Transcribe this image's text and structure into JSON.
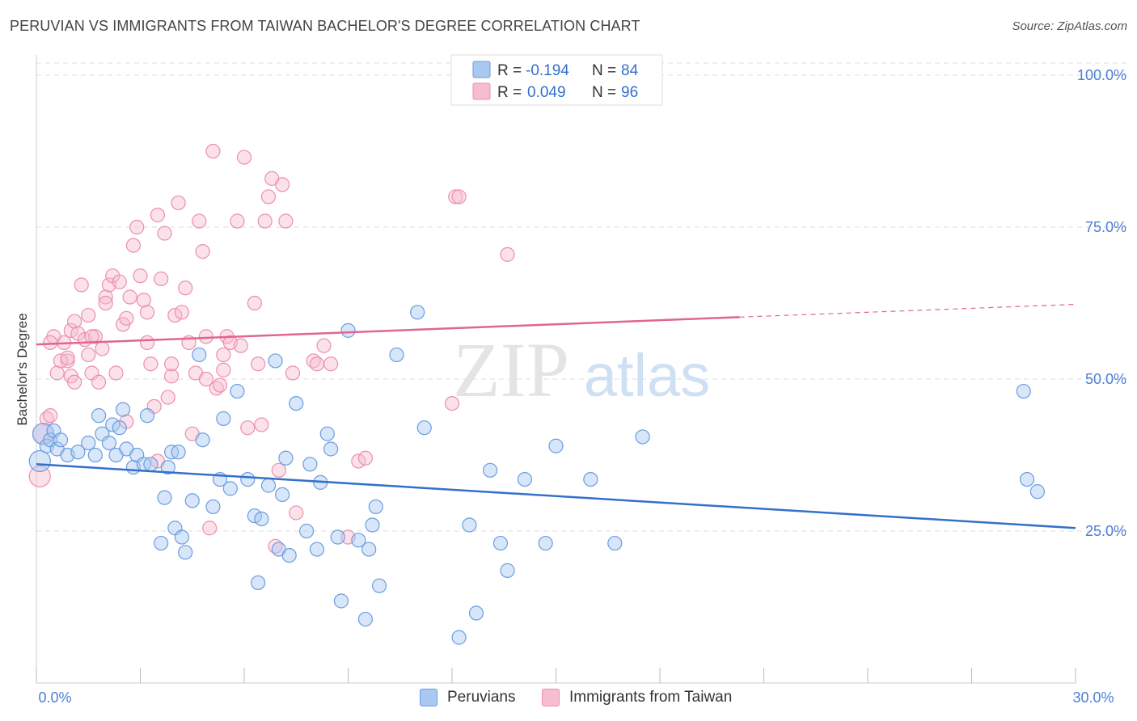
{
  "title": "PERUVIAN VS IMMIGRANTS FROM TAIWAN BACHELOR'S DEGREE CORRELATION CHART",
  "source": "Source: ZipAtlas.com",
  "colors": {
    "blue_fill": "#a9c8f2",
    "blue_stroke": "#6b9de0",
    "blue_line": "#3370cc",
    "pink_fill": "#f6bdd0",
    "pink_stroke": "#ec8fae",
    "pink_line": "#e0668f",
    "axis_text": "#4a7fd4",
    "grid": "#dddddd"
  },
  "stats": [
    {
      "r_label": "R =",
      "r_value": "-0.194",
      "n_label": "N =",
      "n_value": "84"
    },
    {
      "r_label": "R =",
      "r_value": "0.049",
      "n_label": "N =",
      "n_value": "96"
    }
  ],
  "legend": {
    "peruvians": "Peruvians",
    "taiwan": "Immigrants from Taiwan"
  },
  "watermark": {
    "zip": "ZIP",
    "atlas": "atlas"
  },
  "chart_data": {
    "type": "scatter",
    "title": "PERUVIAN VS IMMIGRANTS FROM TAIWAN BACHELOR'S DEGREE CORRELATION CHART",
    "xlabel": "",
    "ylabel": "Bachelor's Degree",
    "xlim": [
      0,
      30
    ],
    "ylim": [
      0,
      102
    ],
    "x_tick_labels": [
      "0.0%",
      "30.0%"
    ],
    "y_ticks": [
      25,
      50,
      75,
      100
    ],
    "y_tick_labels": [
      "25.0%",
      "50.0%",
      "75.0%",
      "100.0%"
    ],
    "grid": true,
    "legend_position": "top-center",
    "series": [
      {
        "name": "Peruvians",
        "trend": {
          "x": [
            0,
            30
          ],
          "y": [
            36.0,
            25.5
          ]
        },
        "points": [
          [
            0.1,
            36.5
          ],
          [
            0.2,
            41
          ],
          [
            0.3,
            39
          ],
          [
            0.4,
            40
          ],
          [
            0.5,
            41.5
          ],
          [
            0.6,
            38.5
          ],
          [
            0.7,
            40
          ],
          [
            0.9,
            37.5
          ],
          [
            1.2,
            38
          ],
          [
            1.5,
            39.5
          ],
          [
            1.7,
            37.5
          ],
          [
            1.8,
            44
          ],
          [
            1.9,
            41
          ],
          [
            2.1,
            39.5
          ],
          [
            2.2,
            42.5
          ],
          [
            2.3,
            37.5
          ],
          [
            2.4,
            42
          ],
          [
            2.5,
            45
          ],
          [
            2.6,
            38.5
          ],
          [
            2.8,
            35.5
          ],
          [
            2.9,
            37.5
          ],
          [
            3.1,
            36
          ],
          [
            3.2,
            44
          ],
          [
            3.3,
            36
          ],
          [
            3.6,
            23
          ],
          [
            3.7,
            30.5
          ],
          [
            3.8,
            35.5
          ],
          [
            3.9,
            38
          ],
          [
            4.0,
            25.5
          ],
          [
            4.1,
            38
          ],
          [
            4.2,
            24
          ],
          [
            4.3,
            21.5
          ],
          [
            4.5,
            30
          ],
          [
            4.7,
            54
          ],
          [
            4.8,
            40
          ],
          [
            5.1,
            29
          ],
          [
            5.3,
            33.5
          ],
          [
            5.4,
            43.5
          ],
          [
            5.6,
            32
          ],
          [
            5.8,
            48
          ],
          [
            6.1,
            33.5
          ],
          [
            6.3,
            27.5
          ],
          [
            6.4,
            16.5
          ],
          [
            6.5,
            27
          ],
          [
            6.7,
            32.5
          ],
          [
            6.9,
            53
          ],
          [
            7.0,
            22
          ],
          [
            7.1,
            31
          ],
          [
            7.2,
            37
          ],
          [
            7.3,
            21
          ],
          [
            7.5,
            46
          ],
          [
            7.8,
            25
          ],
          [
            7.9,
            36
          ],
          [
            8.1,
            22
          ],
          [
            8.2,
            33
          ],
          [
            8.4,
            41
          ],
          [
            8.5,
            38.5
          ],
          [
            8.7,
            24
          ],
          [
            8.8,
            13.5
          ],
          [
            9.0,
            58
          ],
          [
            9.3,
            23.5
          ],
          [
            9.5,
            10.5
          ],
          [
            9.6,
            22
          ],
          [
            9.7,
            26
          ],
          [
            9.8,
            29
          ],
          [
            9.9,
            16
          ],
          [
            10.4,
            54
          ],
          [
            11.2,
            42
          ],
          [
            11.0,
            61
          ],
          [
            12.2,
            7.5
          ],
          [
            12.5,
            26
          ],
          [
            12.7,
            11.5
          ],
          [
            13.1,
            35
          ],
          [
            13.4,
            23
          ],
          [
            13.6,
            18.5
          ],
          [
            14.1,
            33.5
          ],
          [
            14.7,
            23
          ],
          [
            15.0,
            39
          ],
          [
            16.0,
            33.5
          ],
          [
            16.7,
            23
          ],
          [
            17.5,
            40.5
          ],
          [
            28.5,
            48
          ],
          [
            28.6,
            33.5
          ],
          [
            28.9,
            31.5
          ]
        ]
      },
      {
        "name": "Immigrants from Taiwan",
        "trend": {
          "x": [
            0,
            20.3
          ],
          "y": [
            55.7,
            60.2
          ]
        },
        "trend_extension": {
          "x": [
            20.3,
            30
          ],
          "y": [
            60.2,
            62.3
          ]
        },
        "points": [
          [
            0.1,
            34
          ],
          [
            0.2,
            41
          ],
          [
            0.3,
            43.5
          ],
          [
            0.4,
            44
          ],
          [
            0.5,
            57
          ],
          [
            0.6,
            51
          ],
          [
            0.8,
            56
          ],
          [
            0.9,
            53
          ],
          [
            1.0,
            58
          ],
          [
            1.1,
            59.5
          ],
          [
            1.2,
            57.5
          ],
          [
            1.3,
            65.5
          ],
          [
            1.4,
            56.5
          ],
          [
            1.5,
            60.5
          ],
          [
            1.6,
            51
          ],
          [
            1.7,
            57
          ],
          [
            1.8,
            49.5
          ],
          [
            1.9,
            55
          ],
          [
            2.0,
            63.5
          ],
          [
            2.1,
            65.5
          ],
          [
            2.2,
            67
          ],
          [
            2.3,
            51
          ],
          [
            2.4,
            66
          ],
          [
            2.5,
            59
          ],
          [
            2.6,
            60
          ],
          [
            2.7,
            63.5
          ],
          [
            2.8,
            72
          ],
          [
            2.9,
            75
          ],
          [
            3.0,
            67
          ],
          [
            3.1,
            63
          ],
          [
            3.2,
            56
          ],
          [
            3.3,
            52.5
          ],
          [
            3.4,
            45.5
          ],
          [
            3.5,
            77
          ],
          [
            3.6,
            66.5
          ],
          [
            3.7,
            74
          ],
          [
            3.8,
            47
          ],
          [
            3.9,
            50.5
          ],
          [
            4.0,
            60.5
          ],
          [
            4.1,
            79
          ],
          [
            4.2,
            61
          ],
          [
            4.3,
            65
          ],
          [
            4.4,
            56
          ],
          [
            4.5,
            41
          ],
          [
            4.6,
            51
          ],
          [
            4.7,
            76
          ],
          [
            4.8,
            71
          ],
          [
            4.9,
            50
          ],
          [
            5.0,
            25.5
          ],
          [
            5.1,
            87.5
          ],
          [
            5.2,
            48.5
          ],
          [
            5.3,
            49
          ],
          [
            5.4,
            54
          ],
          [
            5.5,
            57
          ],
          [
            5.6,
            56
          ],
          [
            5.8,
            76
          ],
          [
            5.9,
            55.5
          ],
          [
            6.0,
            86.5
          ],
          [
            6.1,
            42
          ],
          [
            6.3,
            62.5
          ],
          [
            6.4,
            52.5
          ],
          [
            6.5,
            42.5
          ],
          [
            6.6,
            76
          ],
          [
            6.7,
            80
          ],
          [
            6.8,
            83
          ],
          [
            6.9,
            22.5
          ],
          [
            7.0,
            35
          ],
          [
            7.1,
            82
          ],
          [
            7.2,
            76
          ],
          [
            7.4,
            51
          ],
          [
            7.5,
            28
          ],
          [
            8.0,
            53
          ],
          [
            8.1,
            52.5
          ],
          [
            8.3,
            55.5
          ],
          [
            8.5,
            52.5
          ],
          [
            9.0,
            24
          ],
          [
            9.3,
            36.5
          ],
          [
            9.5,
            37
          ],
          [
            1.0,
            50.5
          ],
          [
            1.5,
            54
          ],
          [
            12.0,
            46
          ],
          [
            12.1,
            80
          ],
          [
            12.2,
            80
          ],
          [
            13.6,
            70.5
          ],
          [
            3.5,
            36.5
          ],
          [
            2.6,
            43
          ],
          [
            1.1,
            49.5
          ],
          [
            4.9,
            57
          ],
          [
            5.4,
            51.5
          ],
          [
            2.0,
            62.5
          ],
          [
            3.2,
            61
          ],
          [
            1.6,
            57
          ],
          [
            0.7,
            53
          ],
          [
            0.9,
            53.5
          ],
          [
            0.4,
            56
          ],
          [
            3.9,
            52.5
          ]
        ]
      }
    ]
  }
}
